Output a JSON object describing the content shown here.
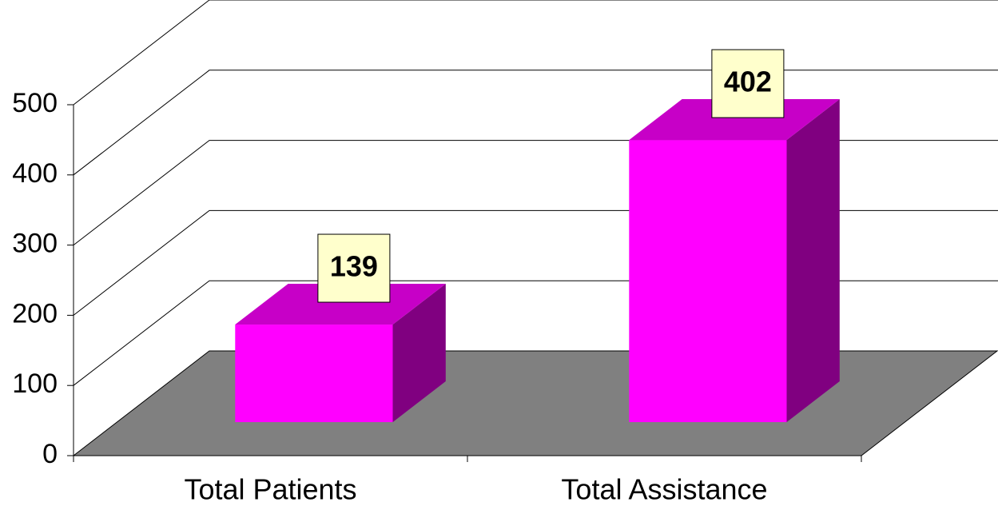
{
  "chart_data": {
    "type": "bar3d",
    "categories": [
      "Total Patients",
      "Total Assistance"
    ],
    "values": [
      139,
      402
    ],
    "color": "#ff00ff",
    "ylim": [
      0,
      500
    ],
    "yticks": [
      0,
      100,
      200,
      300,
      400,
      500
    ],
    "grid": true
  }
}
